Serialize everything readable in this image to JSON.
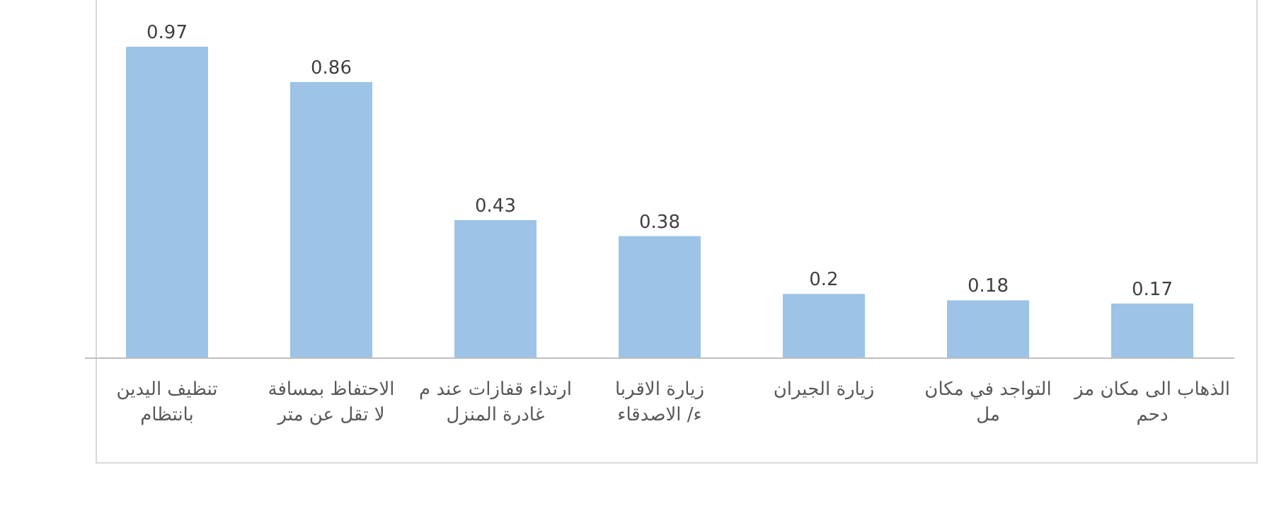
{
  "chart_data": {
    "type": "bar",
    "categories": [
      "تنظيف اليدين\nبانتظام",
      "الاحتفاظ بمسافة\nلا تقل عن متر",
      "ارتداء قفازات عند م\nغادرة المنزل",
      "زيارة الاقربا\nء/ الاصدقاء",
      "زيارة الجيران",
      "التواجد في مكان\nمل",
      "الذهاب الى مكان مز\nدحم"
    ],
    "values": [
      0.97,
      0.86,
      0.43,
      0.38,
      0.2,
      0.18,
      0.17
    ],
    "color": "#9dc3e6",
    "data_labels": true
  }
}
